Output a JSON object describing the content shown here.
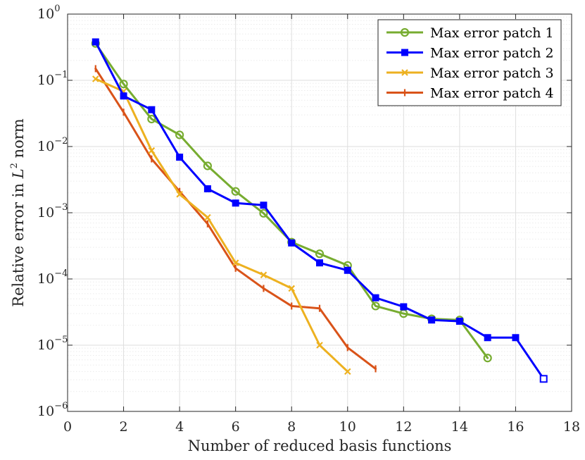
{
  "chart_data": {
    "type": "line",
    "title": "",
    "xlabel": "Number of reduced basis functions",
    "ylabel": "Relative error in L² norm",
    "ylabel_parts": {
      "prefix": "Relative error in ",
      "var": "L",
      "exp": "2",
      "suffix": " norm"
    },
    "xlim": [
      0,
      18
    ],
    "ylim": [
      1e-06,
      1
    ],
    "yscale": "log",
    "grid": true,
    "minor_grid": true,
    "legend_position": "top-right",
    "x_ticks": [
      0,
      2,
      4,
      6,
      8,
      10,
      12,
      14,
      16,
      18
    ],
    "x_tick_labels": [
      "0",
      "2",
      "4",
      "6",
      "8",
      "10",
      "12",
      "14",
      "16",
      "18"
    ],
    "y_ticks": [
      {
        "value": 1,
        "base": "10",
        "exp": "0"
      },
      {
        "value": 0.1,
        "base": "10",
        "exp": "−1"
      },
      {
        "value": 0.01,
        "base": "10",
        "exp": "−2"
      },
      {
        "value": 0.001,
        "base": "10",
        "exp": "−3"
      },
      {
        "value": 0.0001,
        "base": "10",
        "exp": "−4"
      },
      {
        "value": 1e-05,
        "base": "10",
        "exp": "−5"
      },
      {
        "value": 1e-06,
        "base": "10",
        "exp": "−6"
      }
    ],
    "series": [
      {
        "name": "Max error patch 1",
        "color": "#77AC30",
        "marker": "circle",
        "x": [
          1,
          2,
          3,
          4,
          5,
          6,
          7,
          8,
          9,
          10,
          11,
          12,
          13,
          14,
          15
        ],
        "y": [
          0.36,
          0.088,
          0.026,
          0.015,
          0.0051,
          0.0021,
          0.00098,
          0.00036,
          0.00024,
          0.00016,
          3.9e-05,
          3e-05,
          2.5e-05,
          2.4e-05,
          6.4e-06
        ]
      },
      {
        "name": "Max error patch 2",
        "color": "#0000FF",
        "marker": "square",
        "x": [
          1,
          2,
          3,
          4,
          5,
          6,
          7,
          8,
          9,
          10,
          11,
          12,
          13,
          14,
          15,
          16,
          17
        ],
        "y": [
          0.38,
          0.058,
          0.036,
          0.0069,
          0.0023,
          0.0014,
          0.0013,
          0.00035,
          0.000175,
          0.000135,
          5.2e-05,
          3.8e-05,
          2.4e-05,
          2.3e-05,
          1.3e-05,
          1.3e-05,
          3.1e-06
        ]
      },
      {
        "name": "Max error patch 3",
        "color": "#EDB120",
        "marker": "x",
        "x": [
          1,
          2,
          3,
          4,
          5,
          6,
          7,
          8,
          9,
          10
        ],
        "y": [
          0.105,
          0.068,
          0.0087,
          0.0019,
          0.00085,
          0.000175,
          0.000115,
          7.2e-05,
          1e-05,
          4e-06
        ]
      },
      {
        "name": "Max error patch 4",
        "color": "#D95319",
        "marker": "plus",
        "x": [
          1,
          2,
          3,
          4,
          5,
          6,
          7,
          8,
          9,
          10,
          11
        ],
        "y": [
          0.15,
          0.033,
          0.0065,
          0.0021,
          0.00068,
          0.000145,
          7.2e-05,
          3.9e-05,
          3.6e-05,
          9.2e-06,
          4.4e-06
        ]
      }
    ]
  }
}
